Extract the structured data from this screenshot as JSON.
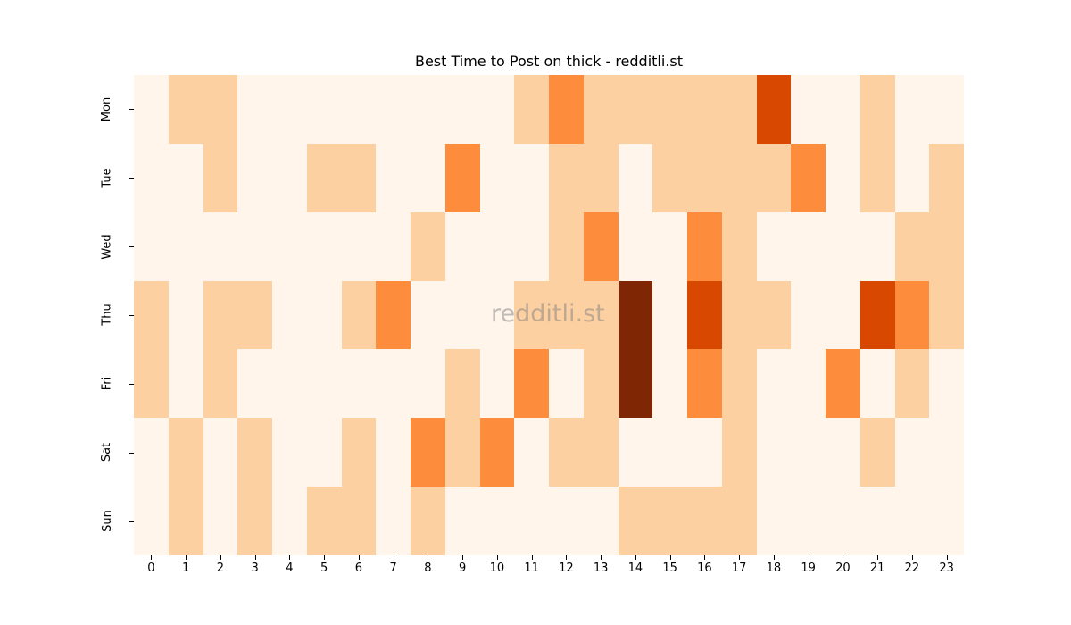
{
  "chart_data": {
    "type": "heatmap",
    "title": "Best Time to Post on thick - redditli.st",
    "xlabel": "",
    "ylabel": "",
    "x": [
      "0",
      "1",
      "2",
      "3",
      "4",
      "5",
      "6",
      "7",
      "8",
      "9",
      "10",
      "11",
      "12",
      "13",
      "14",
      "15",
      "16",
      "17",
      "18",
      "19",
      "20",
      "21",
      "22",
      "23"
    ],
    "y": [
      "Mon",
      "Tue",
      "Wed",
      "Thu",
      "Fri",
      "Sat",
      "Sun"
    ],
    "colormap": "Oranges",
    "color_scale": [
      "#fff5eb",
      "#fdd0a2",
      "#fd8d3c",
      "#d94801",
      "#7f2704"
    ],
    "values": [
      [
        0,
        1,
        1,
        0,
        0,
        0,
        0,
        0,
        0,
        0,
        0,
        1,
        2,
        1,
        1,
        1,
        1,
        1,
        3,
        0,
        0,
        1,
        0,
        0
      ],
      [
        0,
        0,
        1,
        0,
        0,
        1,
        1,
        0,
        0,
        2,
        0,
        0,
        1,
        1,
        0,
        1,
        1,
        1,
        1,
        2,
        0,
        1,
        0,
        1
      ],
      [
        0,
        0,
        0,
        0,
        0,
        0,
        0,
        0,
        1,
        0,
        0,
        0,
        1,
        2,
        0,
        0,
        2,
        1,
        0,
        0,
        0,
        0,
        1,
        1
      ],
      [
        1,
        0,
        1,
        1,
        0,
        0,
        1,
        2,
        0,
        0,
        0,
        1,
        1,
        1,
        4,
        0,
        3,
        1,
        1,
        0,
        0,
        3,
        2,
        1
      ],
      [
        1,
        0,
        1,
        0,
        0,
        0,
        0,
        0,
        0,
        1,
        0,
        2,
        0,
        1,
        4,
        0,
        2,
        1,
        0,
        0,
        2,
        0,
        1,
        0
      ],
      [
        0,
        1,
        0,
        1,
        0,
        0,
        1,
        0,
        2,
        1,
        2,
        0,
        1,
        1,
        0,
        0,
        0,
        1,
        0,
        0,
        0,
        1,
        0,
        0
      ],
      [
        0,
        1,
        0,
        1,
        0,
        1,
        1,
        0,
        1,
        0,
        0,
        0,
        0,
        0,
        1,
        1,
        1,
        1,
        0,
        0,
        0,
        0,
        0,
        0
      ]
    ],
    "grid": false,
    "legend": "none",
    "watermark": "redditli.st"
  }
}
